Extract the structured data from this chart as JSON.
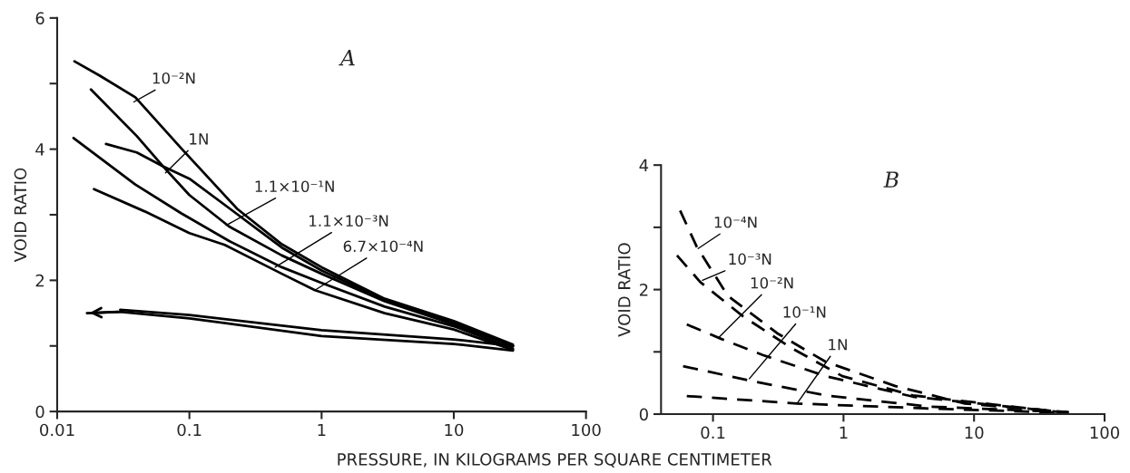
{
  "chart_data": [
    {
      "type": "line",
      "title": "A",
      "ylabel": "VOID RATIO",
      "xlabel": "PRESSURE, IN KILOGRAMS PER SQUARE CENTIMETER",
      "log": "x",
      "xlim": [
        0.01,
        100
      ],
      "xticks": [
        0.01,
        0.1,
        1,
        10,
        100
      ],
      "ylim": [
        0,
        6
      ],
      "yticks": [
        0,
        {
          "value": 1,
          "label": null
        },
        2,
        {
          "value": 3,
          "label": null
        },
        4,
        {
          "value": 5,
          "label": null
        },
        6
      ],
      "grid": false,
      "line_style": "solid",
      "marker": "none",
      "series": [
        {
          "color": "#000000",
          "x": [
            0.0135,
            0.021,
            0.039,
            0.087,
            0.23,
            0.5,
            1,
            3,
            10,
            28
          ],
          "values": [
            5.34,
            5.12,
            4.79,
            4.01,
            3.09,
            2.55,
            2.2,
            1.72,
            1.38,
            1.02
          ]
        },
        {
          "color": "#000000",
          "x": [
            0.018,
            0.04,
            0.063,
            0.1,
            0.2,
            0.5,
            1,
            3,
            10,
            28
          ],
          "values": [
            4.91,
            4.2,
            3.74,
            3.3,
            2.82,
            2.38,
            2.1,
            1.68,
            1.33,
            1.0
          ]
        },
        {
          "color": "#000000",
          "x": [
            0.0234,
            0.04,
            0.063,
            0.1,
            0.2,
            0.5,
            1,
            3,
            10,
            28
          ],
          "values": [
            4.08,
            3.95,
            3.74,
            3.55,
            3.1,
            2.5,
            2.15,
            1.7,
            1.35,
            1.0
          ]
        },
        {
          "color": "#000000",
          "x": [
            0.0133,
            0.039,
            0.087,
            0.2,
            0.5,
            1,
            3,
            10,
            28
          ],
          "values": [
            4.17,
            3.46,
            3.02,
            2.6,
            2.2,
            1.96,
            1.6,
            1.3,
            0.96
          ]
        },
        {
          "color": "#000000",
          "x": [
            0.019,
            0.046,
            0.1,
            0.185,
            0.5,
            0.89,
            3,
            10,
            28
          ],
          "values": [
            3.39,
            3.05,
            2.72,
            2.54,
            2.1,
            1.85,
            1.5,
            1.25,
            0.94
          ]
        },
        {
          "color": "#000000",
          "x": [
            28,
            10,
            1,
            0.1,
            0.03
          ],
          "values": [
            1.0,
            1.1,
            1.24,
            1.47,
            1.55
          ]
        },
        {
          "color": "#000000",
          "x": [
            28,
            10,
            1,
            0.1,
            0.03,
            0.0168
          ],
          "values": [
            0.93,
            1.03,
            1.15,
            1.42,
            1.52,
            1.5
          ]
        }
      ],
      "annotations": [
        {
          "text": "10⁻²N",
          "x": 0.038,
          "y": 4.72
        },
        {
          "text": "1N",
          "x": 0.066,
          "y": 3.64
        },
        {
          "text": "1.1×10⁻¹N",
          "x": 0.19,
          "y": 2.84
        },
        {
          "text": "1.1×10⁻³N",
          "x": 0.445,
          "y": 2.2
        },
        {
          "text": "6.7×10⁻⁴N",
          "x": 0.89,
          "y": 1.85
        }
      ]
    },
    {
      "type": "line",
      "title": "B",
      "ylabel": "VOID RATIO",
      "log": "x",
      "xlim": [
        0.04,
        100
      ],
      "xticks": [
        0.1,
        1,
        10,
        100
      ],
      "ylim": [
        0,
        4
      ],
      "yticks": [
        0,
        {
          "value": 1,
          "label": null
        },
        2,
        {
          "value": 3,
          "label": null
        },
        4
      ],
      "grid": false,
      "line_style": "dashed",
      "marker": "none",
      "series": [
        {
          "color": "#000000",
          "x": [
            0.056,
            0.075,
            0.13,
            0.31,
            0.73,
            2.5,
            8.5,
            53
          ],
          "values": [
            3.27,
            2.69,
            1.9,
            1.3,
            0.84,
            0.45,
            0.17,
            0.03
          ]
        },
        {
          "color": "#000000",
          "x": [
            0.053,
            0.08,
            0.17,
            0.4,
            0.98,
            3.4,
            53
          ],
          "values": [
            2.55,
            2.12,
            1.57,
            1.06,
            0.61,
            0.3,
            0.02
          ]
        },
        {
          "color": "#000000",
          "x": [
            0.063,
            0.115,
            0.24,
            0.73,
            3.4,
            53
          ],
          "values": [
            1.44,
            1.21,
            0.95,
            0.61,
            0.28,
            0.02
          ]
        },
        {
          "color": "#000000",
          "x": [
            0.059,
            0.19,
            0.73,
            4.6,
            53
          ],
          "values": [
            0.77,
            0.54,
            0.3,
            0.12,
            0.03
          ]
        },
        {
          "color": "#000000",
          "x": [
            0.063,
            0.44,
            4.6,
            53
          ],
          "values": [
            0.29,
            0.17,
            0.09,
            0.02
          ]
        }
      ],
      "annotations": [
        {
          "text": "10⁻⁴N",
          "x": 0.077,
          "y": 2.66
        },
        {
          "text": "10⁻³N",
          "x": 0.083,
          "y": 2.15
        },
        {
          "text": "10⁻²N",
          "x": 0.112,
          "y": 1.24
        },
        {
          "text": "10⁻¹N",
          "x": 0.19,
          "y": 0.57
        },
        {
          "text": "1N",
          "x": 0.44,
          "y": 0.17
        }
      ]
    }
  ]
}
